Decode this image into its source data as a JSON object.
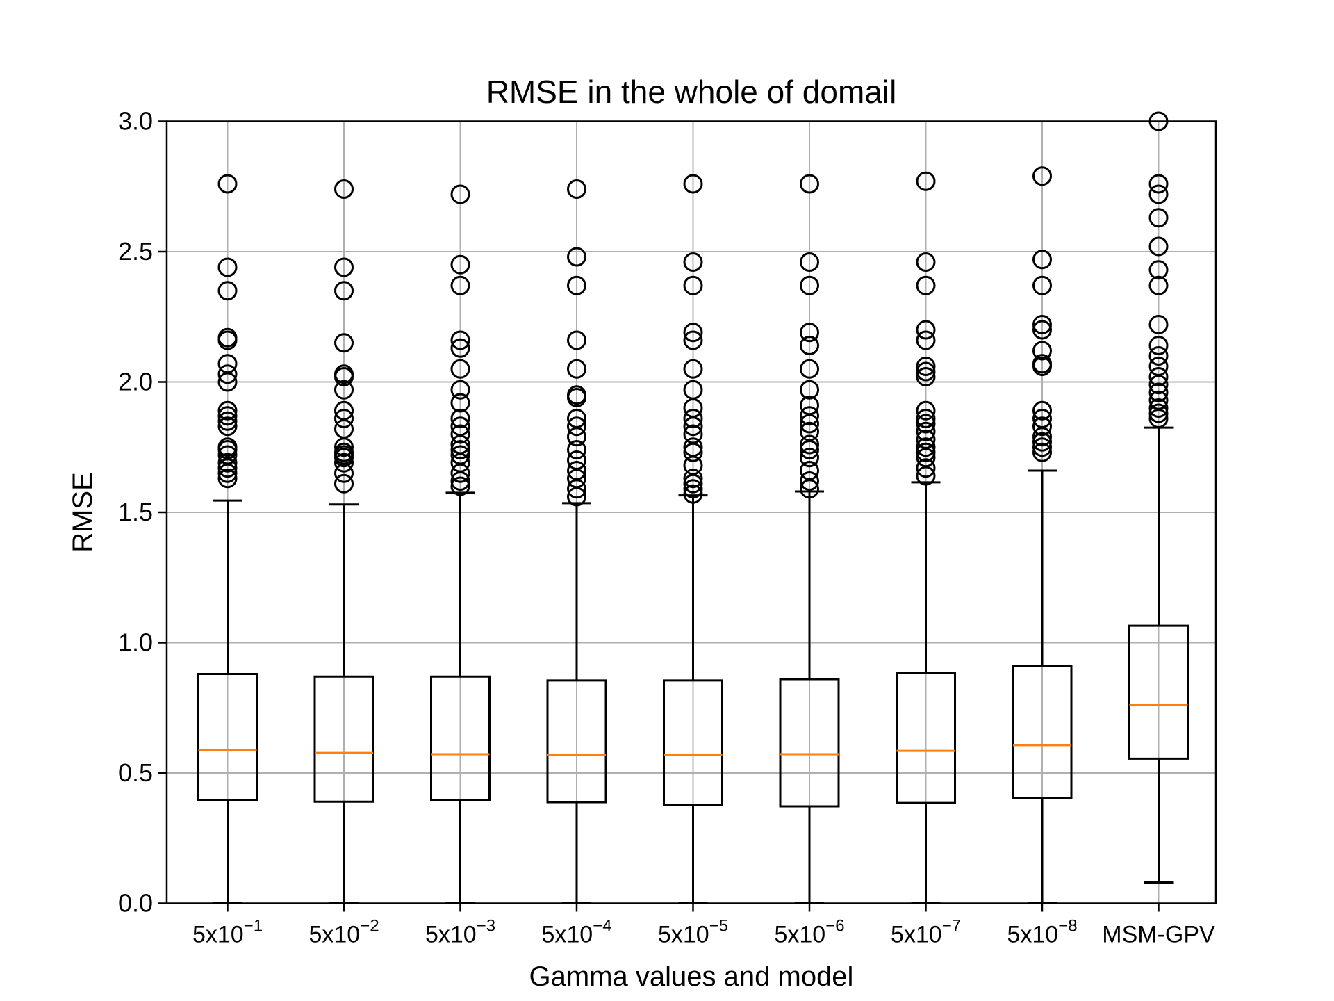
{
  "chart_data": {
    "type": "boxplot",
    "title": "RMSE in the whole of domail",
    "xlabel": "Gamma values and model",
    "ylabel": "RMSE",
    "ylim": [
      0.0,
      3.0
    ],
    "yticks": [
      "0.0",
      "0.5",
      "1.0",
      "1.5",
      "2.0",
      "2.5",
      "3.0"
    ],
    "grid": true,
    "colors": {
      "box": "#000000",
      "median": "#ff7f0e",
      "grid": "#b0b0b0"
    },
    "categories": [
      {
        "base": "5x10",
        "exp": "−1"
      },
      {
        "base": "5x10",
        "exp": "−2"
      },
      {
        "base": "5x10",
        "exp": "−3"
      },
      {
        "base": "5x10",
        "exp": "−4"
      },
      {
        "base": "5x10",
        "exp": "−5"
      },
      {
        "base": "5x10",
        "exp": "−6"
      },
      {
        "base": "5x10",
        "exp": "−7"
      },
      {
        "base": "5x10",
        "exp": "−8"
      },
      {
        "base": "MSM-GPV",
        "exp": ""
      }
    ],
    "boxes": [
      {
        "whislo": 0.0,
        "q1": 0.395,
        "med": 0.587,
        "q3": 0.88,
        "whishi": 1.545,
        "fliers": [
          1.63,
          1.65,
          1.67,
          1.69,
          1.72,
          1.74,
          1.75,
          1.83,
          1.85,
          1.87,
          1.89,
          2.0,
          2.03,
          2.07,
          2.16,
          2.17,
          2.35,
          2.44,
          2.76
        ]
      },
      {
        "whislo": 0.0,
        "q1": 0.39,
        "med": 0.577,
        "q3": 0.87,
        "whishi": 1.53,
        "fliers": [
          1.61,
          1.65,
          1.69,
          1.71,
          1.72,
          1.73,
          1.75,
          1.82,
          1.86,
          1.89,
          1.97,
          2.02,
          2.03,
          2.15,
          2.35,
          2.44,
          2.74
        ]
      },
      {
        "whislo": 0.0,
        "q1": 0.397,
        "med": 0.572,
        "q3": 0.87,
        "whishi": 1.575,
        "fliers": [
          1.6,
          1.62,
          1.65,
          1.69,
          1.72,
          1.74,
          1.76,
          1.8,
          1.83,
          1.86,
          1.92,
          1.97,
          2.05,
          2.13,
          2.16,
          2.37,
          2.45,
          2.72
        ]
      },
      {
        "whislo": 0.0,
        "q1": 0.388,
        "med": 0.57,
        "q3": 0.855,
        "whishi": 1.535,
        "fliers": [
          1.56,
          1.59,
          1.63,
          1.66,
          1.7,
          1.74,
          1.79,
          1.83,
          1.86,
          1.94,
          1.95,
          2.05,
          2.16,
          2.37,
          2.48,
          2.74
        ]
      },
      {
        "whislo": 0.0,
        "q1": 0.378,
        "med": 0.57,
        "q3": 0.855,
        "whishi": 1.565,
        "fliers": [
          1.57,
          1.59,
          1.61,
          1.63,
          1.68,
          1.73,
          1.75,
          1.8,
          1.83,
          1.86,
          1.9,
          1.97,
          2.05,
          2.16,
          2.19,
          2.37,
          2.46,
          2.76
        ]
      },
      {
        "whislo": 0.0,
        "q1": 0.372,
        "med": 0.572,
        "q3": 0.86,
        "whishi": 1.58,
        "fliers": [
          1.59,
          1.62,
          1.66,
          1.71,
          1.74,
          1.76,
          1.81,
          1.84,
          1.87,
          1.91,
          1.97,
          2.05,
          2.14,
          2.19,
          2.37,
          2.46,
          2.76
        ]
      },
      {
        "whislo": 0.0,
        "q1": 0.385,
        "med": 0.585,
        "q3": 0.885,
        "whishi": 1.615,
        "fliers": [
          1.64,
          1.67,
          1.71,
          1.73,
          1.75,
          1.78,
          1.81,
          1.84,
          1.86,
          1.89,
          2.02,
          2.04,
          2.06,
          2.16,
          2.2,
          2.37,
          2.46,
          2.77
        ]
      },
      {
        "whislo": 0.0,
        "q1": 0.405,
        "med": 0.607,
        "q3": 0.91,
        "whishi": 1.66,
        "fliers": [
          1.73,
          1.75,
          1.77,
          1.79,
          1.83,
          1.86,
          1.89,
          2.06,
          2.07,
          2.12,
          2.2,
          2.22,
          2.37,
          2.47,
          2.79
        ]
      },
      {
        "whislo": 0.08,
        "q1": 0.555,
        "med": 0.76,
        "q3": 1.065,
        "whishi": 1.825,
        "fliers": [
          1.86,
          1.88,
          1.9,
          1.93,
          1.96,
          1.99,
          2.02,
          2.06,
          2.1,
          2.14,
          2.22,
          2.37,
          2.43,
          2.52,
          2.63,
          2.72,
          2.76,
          3.0
        ]
      }
    ]
  }
}
